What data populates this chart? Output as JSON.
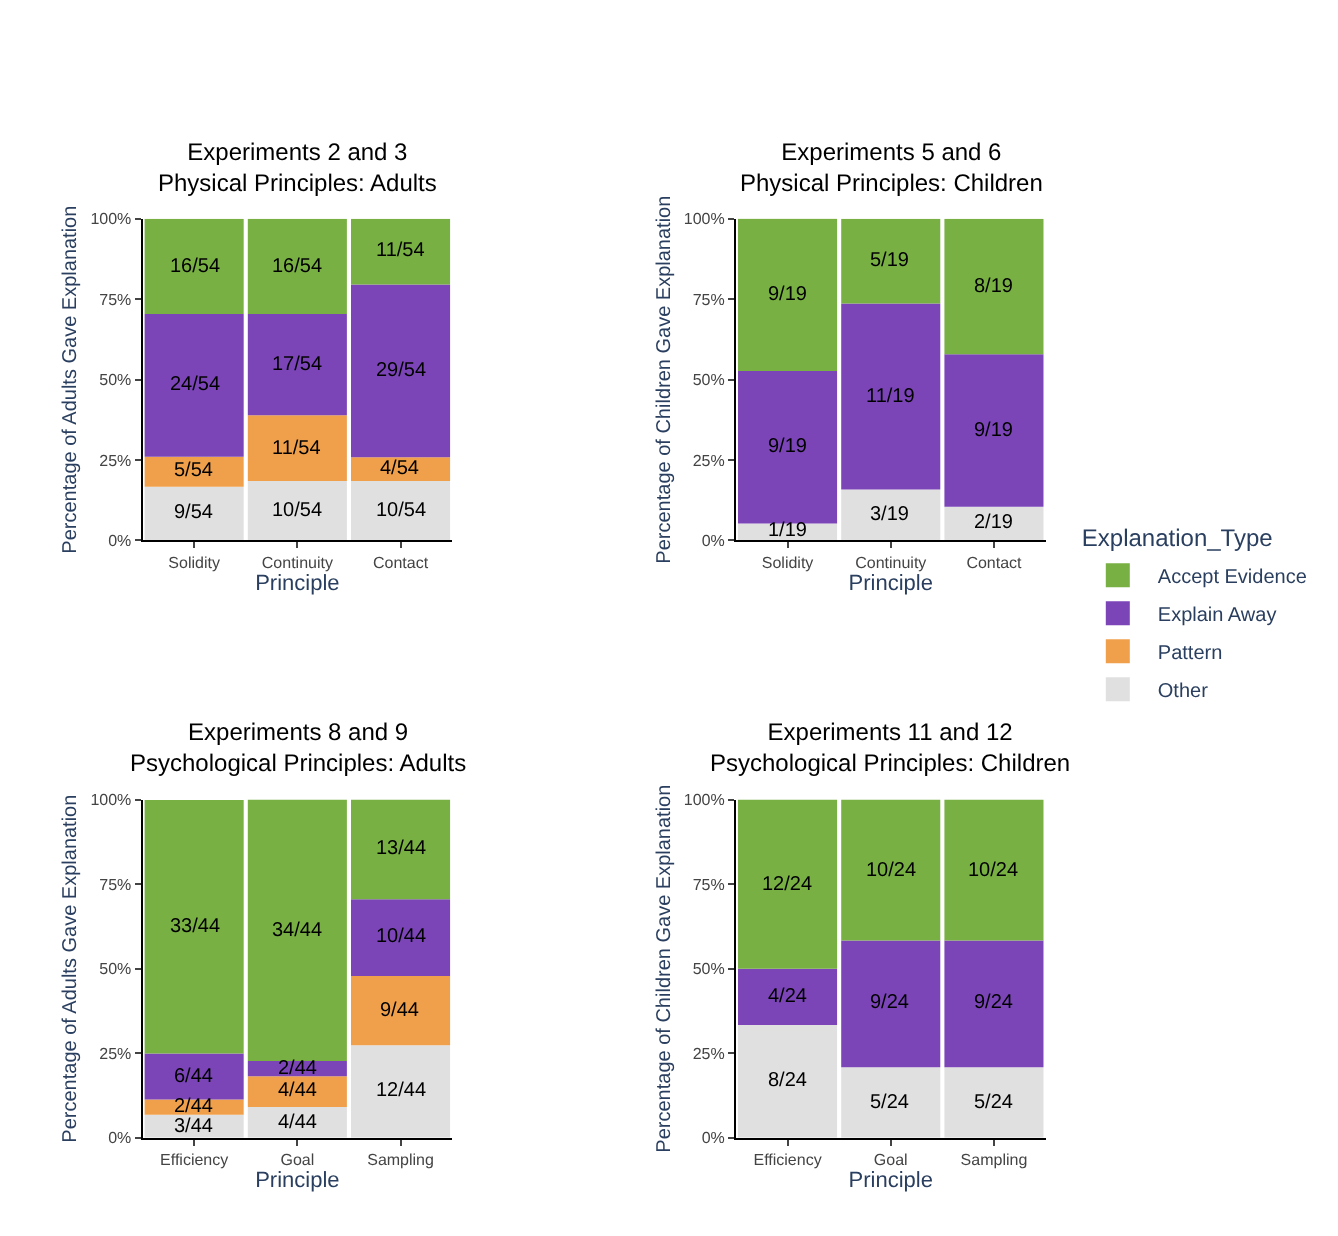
{
  "chart_data": [
    {
      "type": "bar",
      "stacked": true,
      "title": "Experiments 2 and 3",
      "subtitle": "Physical Principles: Adults",
      "xlabel": "Principle",
      "ylabel": "Percentage of Adults Gave Explanation",
      "categories": [
        "Solidity",
        "Continuity",
        "Contact"
      ],
      "ylim": [
        0,
        100
      ],
      "yticks": [
        {
          "value": 0,
          "label": "0%"
        },
        {
          "value": 25,
          "label": "25%"
        },
        {
          "value": 50,
          "label": "50%"
        },
        {
          "value": 75,
          "label": "75%"
        },
        {
          "value": 100,
          "label": "100%"
        }
      ],
      "grid": false,
      "legend": "right",
      "series": [
        {
          "name": "Other",
          "color": "#e0e0e0",
          "values": [
            16.7,
            18.5,
            18.5
          ],
          "value_labels": [
            "9/54",
            "10/54",
            "10/54"
          ]
        },
        {
          "name": "Pattern",
          "color": "#f0a04b",
          "values": [
            9.3,
            20.4,
            7.4
          ],
          "value_labels": [
            "5/54",
            "11/54",
            "4/54"
          ]
        },
        {
          "name": "Explain Away",
          "color": "#7b45b8",
          "values": [
            44.4,
            31.5,
            53.7
          ],
          "value_labels": [
            "24/54",
            "17/54",
            "29/54"
          ]
        },
        {
          "name": "Accept Evidence",
          "color": "#78b043",
          "values": [
            29.6,
            29.6,
            20.4
          ],
          "value_labels": [
            "16/54",
            "16/54",
            "11/54"
          ]
        }
      ]
    },
    {
      "type": "bar",
      "stacked": true,
      "title": "Experiments 5 and 6",
      "subtitle": "Physical Principles: Children",
      "xlabel": "Principle",
      "ylabel": "Percentage of Children Gave Explanation",
      "categories": [
        "Solidity",
        "Continuity",
        "Contact"
      ],
      "ylim": [
        0,
        100
      ],
      "yticks": [
        {
          "value": 0,
          "label": "0%"
        },
        {
          "value": 25,
          "label": "25%"
        },
        {
          "value": 50,
          "label": "50%"
        },
        {
          "value": 75,
          "label": "75%"
        },
        {
          "value": 100,
          "label": "100%"
        }
      ],
      "grid": false,
      "legend": "right",
      "legend_title": "Explanation_Type",
      "series": [
        {
          "name": "Other",
          "color": "#e0e0e0",
          "values": [
            5.3,
            15.8,
            10.5
          ],
          "value_labels": [
            "1/19",
            "3/19",
            "2/19"
          ]
        },
        {
          "name": "Explain Away",
          "color": "#7b45b8",
          "values": [
            47.4,
            57.9,
            47.4
          ],
          "value_labels": [
            "9/19",
            "11/19",
            "9/19"
          ]
        },
        {
          "name": "Accept Evidence",
          "color": "#78b043",
          "values": [
            47.4,
            26.3,
            42.1
          ],
          "value_labels": [
            "9/19",
            "5/19",
            "8/19"
          ]
        }
      ]
    },
    {
      "type": "bar",
      "stacked": true,
      "title": "Experiments 8 and 9",
      "subtitle": "Psychological Principles: Adults",
      "xlabel": "Principle",
      "ylabel": "Percentage of Adults Gave Explanation",
      "categories": [
        "Efficiency",
        "Goal",
        "Sampling"
      ],
      "ylim": [
        0,
        100
      ],
      "yticks": [
        {
          "value": 0,
          "label": "0%"
        },
        {
          "value": 25,
          "label": "25%"
        },
        {
          "value": 50,
          "label": "50%"
        },
        {
          "value": 75,
          "label": "75%"
        },
        {
          "value": 100,
          "label": "100%"
        }
      ],
      "grid": false,
      "legend": "right",
      "series": [
        {
          "name": "Other",
          "color": "#e0e0e0",
          "values": [
            6.8,
            9.1,
            27.3
          ],
          "value_labels": [
            "3/44",
            "4/44",
            "12/44"
          ]
        },
        {
          "name": "Pattern",
          "color": "#f0a04b",
          "values": [
            4.5,
            9.1,
            20.5
          ],
          "value_labels": [
            "2/44",
            "4/44",
            "9/44"
          ]
        },
        {
          "name": "Explain Away",
          "color": "#7b45b8",
          "values": [
            13.6,
            4.5,
            22.7
          ],
          "value_labels": [
            "6/44",
            "2/44",
            "10/44"
          ]
        },
        {
          "name": "Accept Evidence",
          "color": "#78b043",
          "values": [
            75.0,
            77.3,
            29.5
          ],
          "value_labels": [
            "33/44",
            "34/44",
            "13/44"
          ]
        }
      ]
    },
    {
      "type": "bar",
      "stacked": true,
      "title": "Experiments 11 and 12",
      "subtitle": "Psychological Principles: Children",
      "xlabel": "Principle",
      "ylabel": "Percentage of Children Gave Explanation",
      "categories": [
        "Efficiency",
        "Goal",
        "Sampling"
      ],
      "ylim": [
        0,
        100
      ],
      "yticks": [
        {
          "value": 0,
          "label": "0%"
        },
        {
          "value": 25,
          "label": "25%"
        },
        {
          "value": 50,
          "label": "50%"
        },
        {
          "value": 75,
          "label": "75%"
        },
        {
          "value": 100,
          "label": "100%"
        }
      ],
      "grid": false,
      "legend": "right",
      "series": [
        {
          "name": "Other",
          "color": "#e0e0e0",
          "values": [
            33.3,
            20.8,
            20.8
          ],
          "value_labels": [
            "8/24",
            "5/24",
            "5/24"
          ]
        },
        {
          "name": "Explain Away",
          "color": "#7b45b8",
          "values": [
            16.7,
            37.5,
            37.5
          ],
          "value_labels": [
            "4/24",
            "9/24",
            "9/24"
          ]
        },
        {
          "name": "Accept Evidence",
          "color": "#78b043",
          "values": [
            50.0,
            41.7,
            41.7
          ],
          "value_labels": [
            "12/24",
            "10/24",
            "10/24"
          ]
        }
      ]
    }
  ]
}
